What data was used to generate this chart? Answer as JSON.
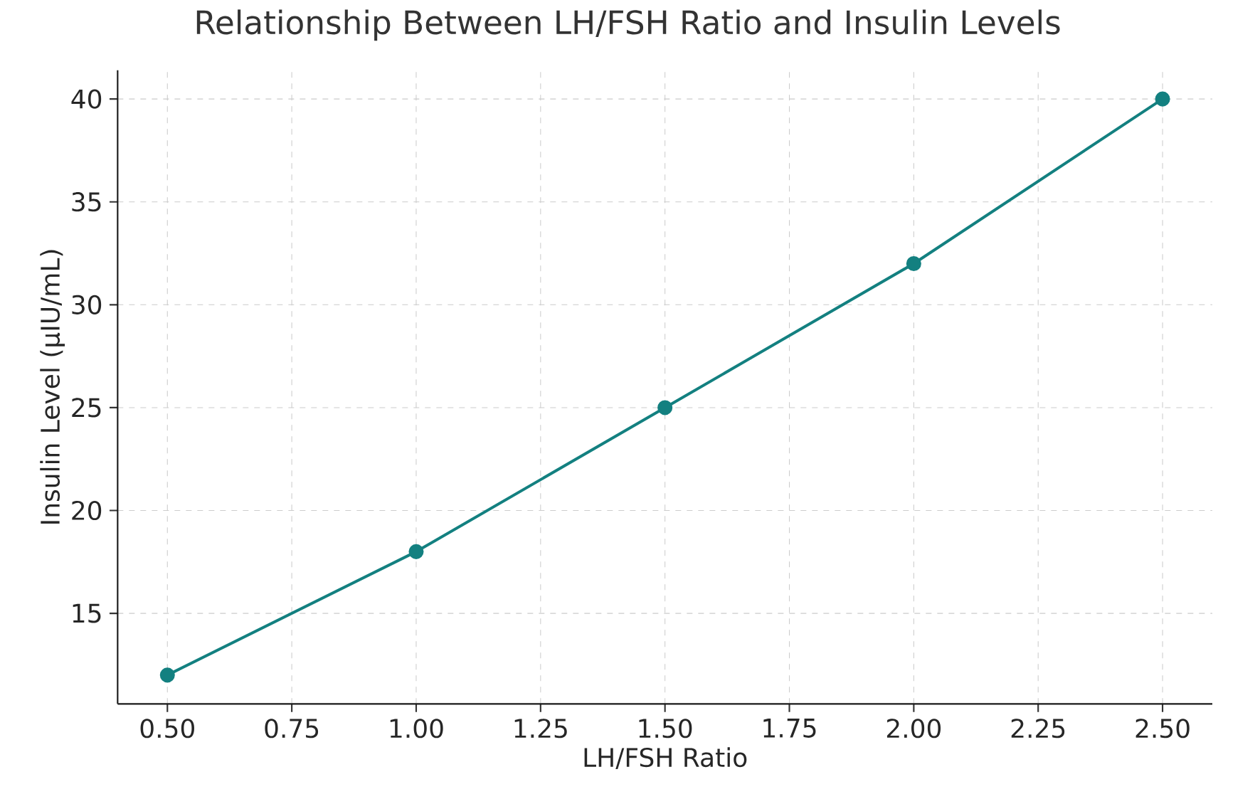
{
  "chart_data": {
    "type": "line",
    "title": "Relationship Between LH/FSH Ratio and Insulin Levels",
    "xlabel": "LH/FSH Ratio",
    "ylabel": "Insulin Level (µIU/mL)",
    "x": [
      0.5,
      1.0,
      1.5,
      2.0,
      2.5
    ],
    "series": [
      {
        "color": "#138080",
        "values": [
          12,
          18,
          25,
          32,
          40
        ]
      }
    ],
    "xlim": [
      0.4,
      2.6
    ],
    "ylim": [
      10.6,
      41.4
    ],
    "xticks": [
      {
        "value": 0.5,
        "label": "0.50"
      },
      {
        "value": 0.75,
        "label": "0.75"
      },
      {
        "value": 1.0,
        "label": "1.00"
      },
      {
        "value": 1.25,
        "label": "1.25"
      },
      {
        "value": 1.5,
        "label": "1.50"
      },
      {
        "value": 1.75,
        "label": "1.75"
      },
      {
        "value": 2.0,
        "label": "2.00"
      },
      {
        "value": 2.25,
        "label": "2.25"
      },
      {
        "value": 2.5,
        "label": "2.50"
      }
    ],
    "yticks": [
      15,
      20,
      25,
      30,
      35,
      40
    ],
    "grid": true,
    "marker": "circle",
    "line_style": "solid"
  }
}
